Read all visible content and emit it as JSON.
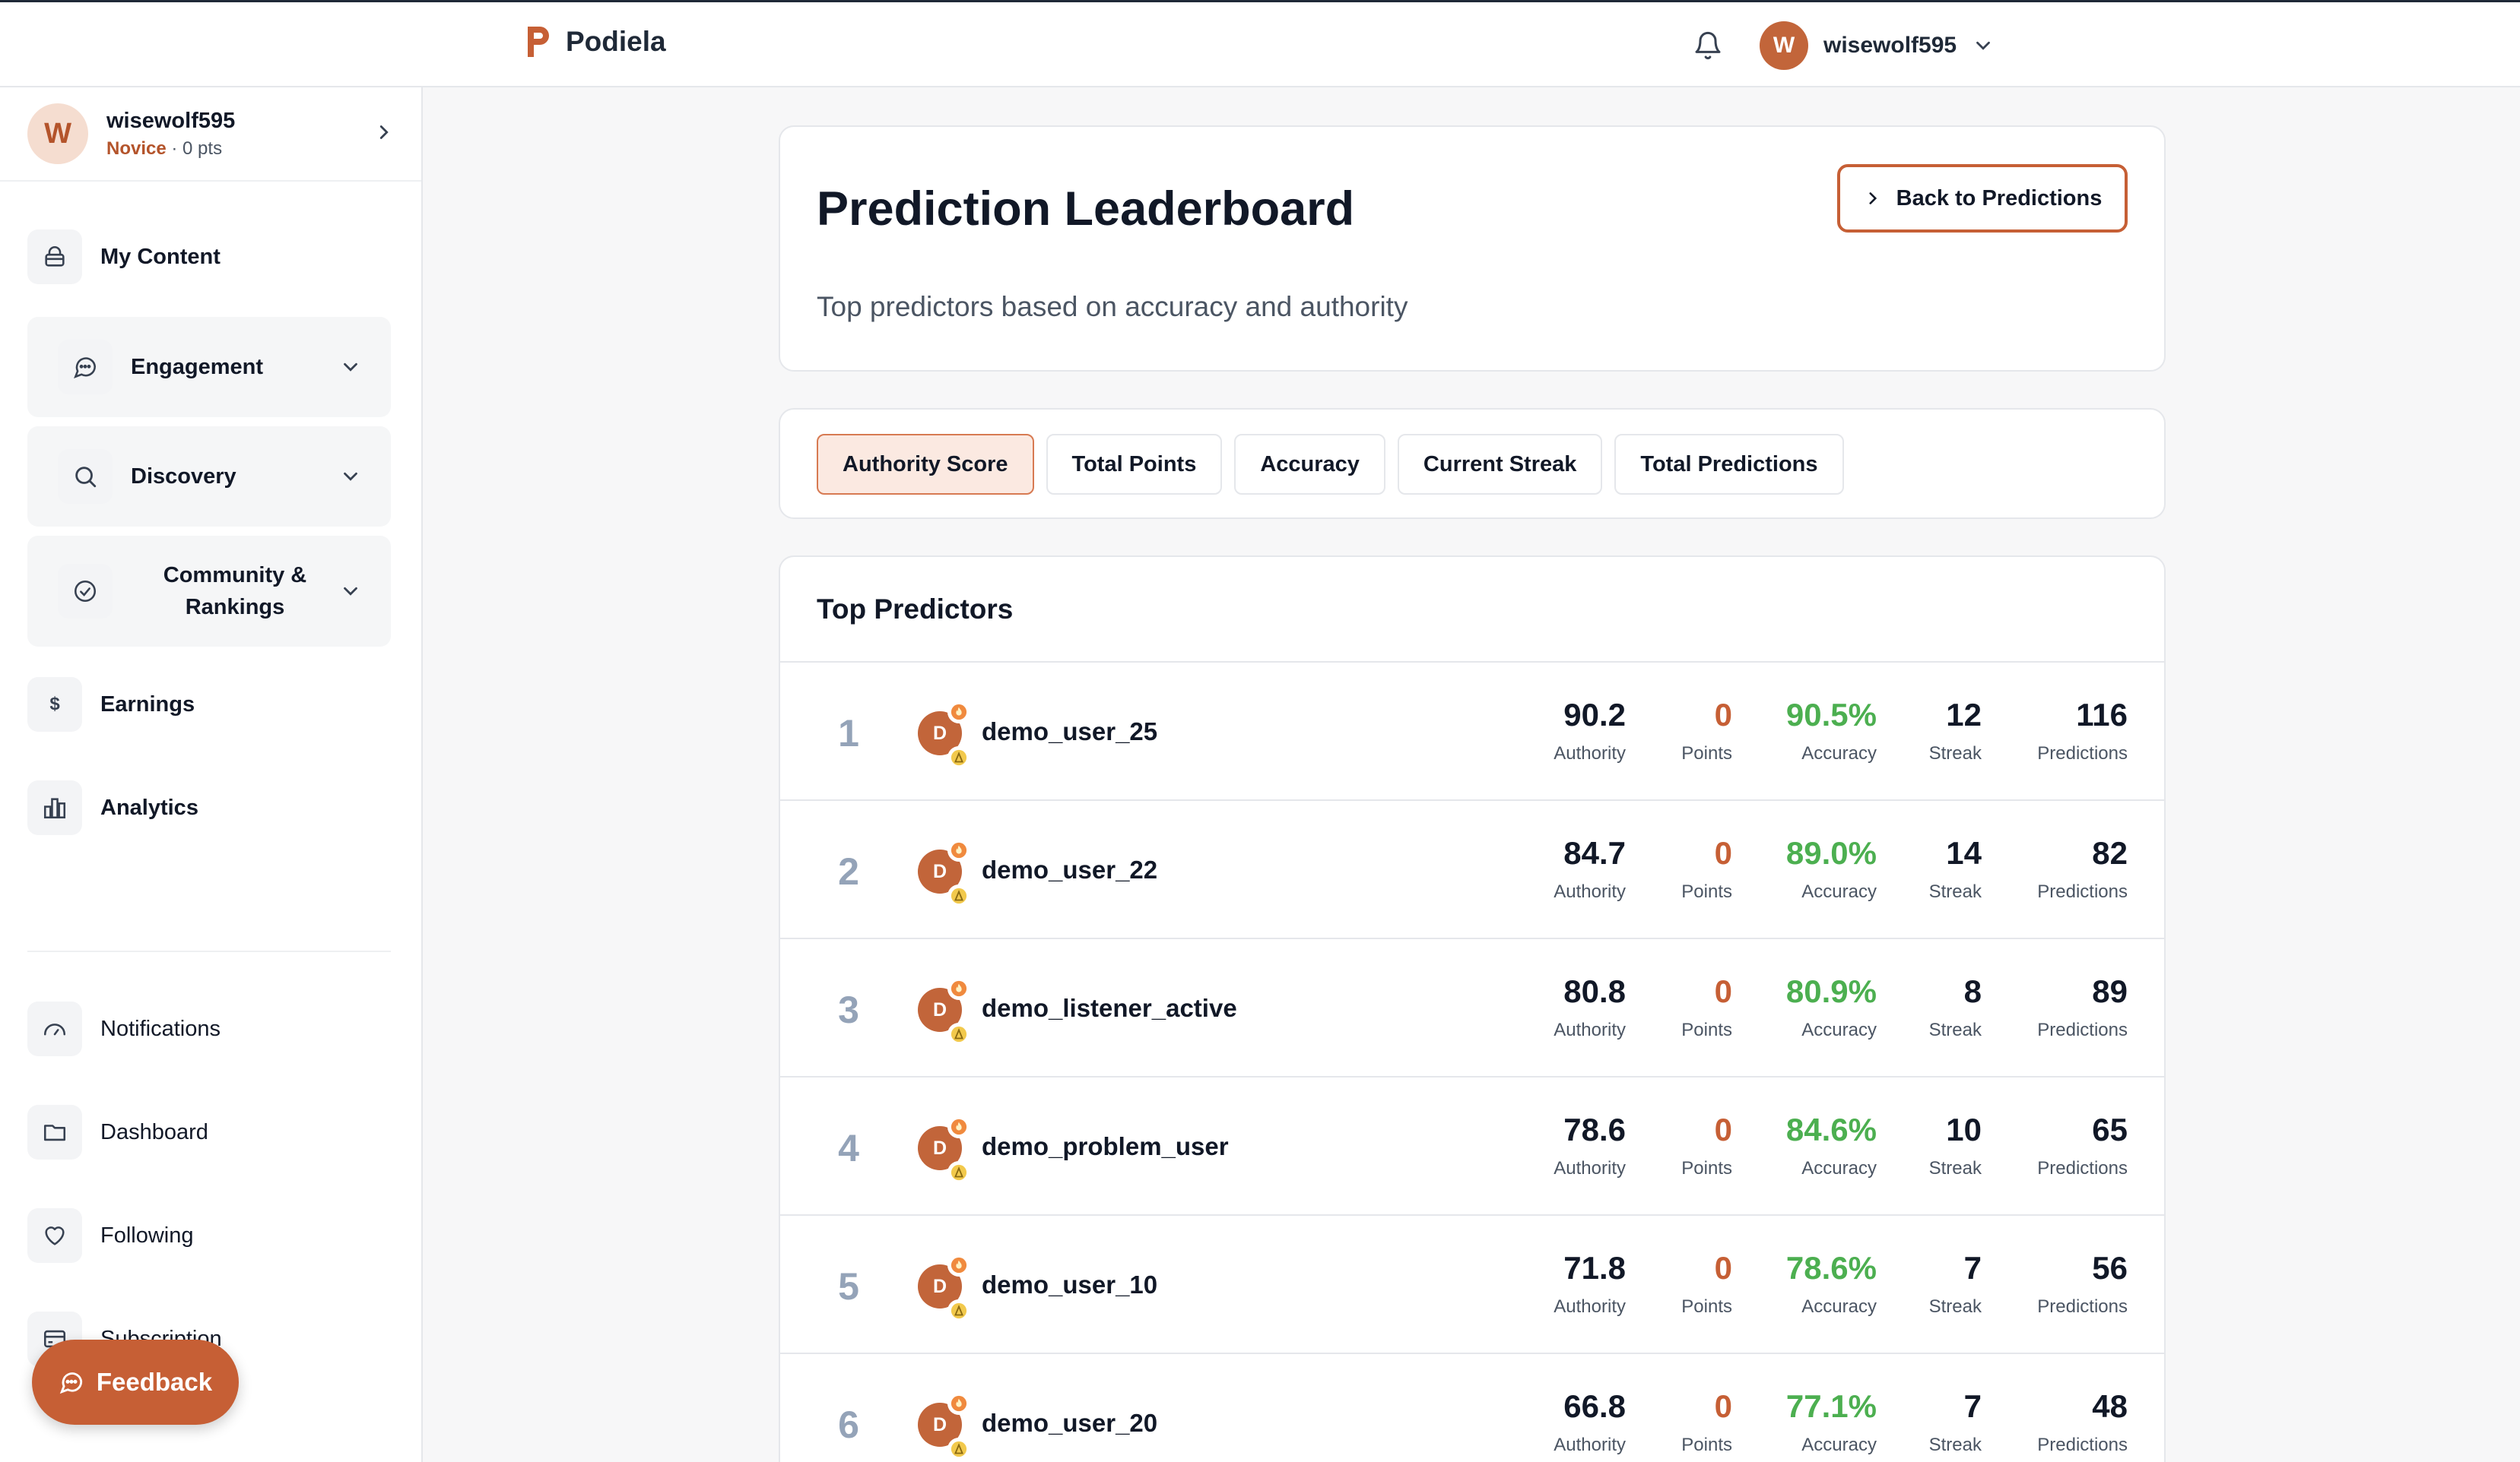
{
  "topbar": {
    "brand": "Podiela",
    "user_initial": "W",
    "username": "wisewolf595"
  },
  "sidebar": {
    "user": {
      "initial": "W",
      "name": "wisewolf595",
      "level": "Novice",
      "points": "· 0 pts"
    },
    "items": [
      {
        "label": "My Content",
        "icon": "lock-icon"
      },
      {
        "label": "Engagement",
        "icon": "chat-bubble-icon"
      },
      {
        "label": "Discovery",
        "icon": "search-icon"
      },
      {
        "label": "Community & Rankings",
        "icon": "check-circle-icon"
      },
      {
        "label": "Earnings",
        "icon": "dollar-icon"
      },
      {
        "label": "Analytics",
        "icon": "bar-chart-icon"
      },
      {
        "label": "Notifications",
        "icon": "gauge-icon"
      },
      {
        "label": "Dashboard",
        "icon": "folder-icon"
      },
      {
        "label": "Following",
        "icon": "heart-icon"
      },
      {
        "label": "Subscription",
        "icon": "credit-card-icon"
      }
    ],
    "feedback": "Feedback"
  },
  "header": {
    "title": "Prediction Leaderboard",
    "subtitle": "Top predictors based on accuracy and authority",
    "back_button": "Back to Predictions"
  },
  "tabs": [
    {
      "label": "Authority Score",
      "active": true
    },
    {
      "label": "Total Points",
      "active": false
    },
    {
      "label": "Accuracy",
      "active": false
    },
    {
      "label": "Current Streak",
      "active": false
    },
    {
      "label": "Total Predictions",
      "active": false
    }
  ],
  "board": {
    "title": "Top Predictors",
    "labels": {
      "authority": "Authority",
      "points": "Points",
      "accuracy": "Accuracy",
      "streak": "Streak",
      "predictions": "Predictions"
    },
    "colors": {
      "points": "#c65f35",
      "accuracy": "#4caf50",
      "rank": "#94a3b8"
    },
    "rows": [
      {
        "rank": "1",
        "initial": "D",
        "name": "demo_user_25",
        "authority": "90.2",
        "points": "0",
        "accuracy": "90.5%",
        "streak": "12",
        "predictions": "116"
      },
      {
        "rank": "2",
        "initial": "D",
        "name": "demo_user_22",
        "authority": "84.7",
        "points": "0",
        "accuracy": "89.0%",
        "streak": "14",
        "predictions": "82"
      },
      {
        "rank": "3",
        "initial": "D",
        "name": "demo_listener_active",
        "authority": "80.8",
        "points": "0",
        "accuracy": "80.9%",
        "streak": "8",
        "predictions": "89"
      },
      {
        "rank": "4",
        "initial": "D",
        "name": "demo_problem_user",
        "authority": "78.6",
        "points": "0",
        "accuracy": "84.6%",
        "streak": "10",
        "predictions": "65"
      },
      {
        "rank": "5",
        "initial": "D",
        "name": "demo_user_10",
        "authority": "71.8",
        "points": "0",
        "accuracy": "78.6%",
        "streak": "7",
        "predictions": "56"
      },
      {
        "rank": "6",
        "initial": "D",
        "name": "demo_user_20",
        "authority": "66.8",
        "points": "0",
        "accuracy": "77.1%",
        "streak": "7",
        "predictions": "48"
      }
    ]
  }
}
